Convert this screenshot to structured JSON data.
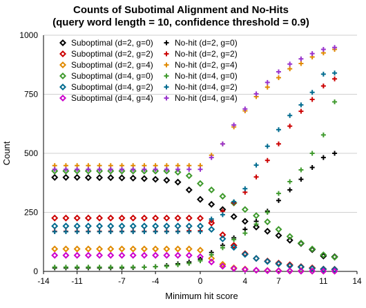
{
  "chart_data": {
    "type": "scatter",
    "title_line1": "Counts of Subotimal Alignment and No-Hits",
    "title_line2": "(query word length = 10, confidence threshold = 0.9)",
    "xlabel": "Minimum hit score",
    "ylabel": "Count",
    "xlim": [
      -14,
      14
    ],
    "ylim": [
      0,
      1000
    ],
    "xticks": [
      -14,
      -11,
      -7,
      -4,
      0,
      4,
      7,
      11,
      14
    ],
    "yticks": [
      0,
      250,
      500,
      750,
      1000
    ],
    "grid": "horizontal",
    "legend_position": "top-left",
    "x": [
      -13,
      -12,
      -11,
      -10,
      -9,
      -8,
      -7,
      -6,
      -5,
      -4,
      -3,
      -2,
      -1,
      0,
      1,
      2,
      3,
      4,
      5,
      6,
      7,
      8,
      9,
      10,
      11,
      12
    ],
    "series": [
      {
        "name": "Suboptimal (d=2, g=0)",
        "marker": "diamond",
        "color": "#000000",
        "values": [
          398,
          398,
          398,
          397,
          397,
          397,
          396,
          395,
          393,
          390,
          386,
          378,
          345,
          305,
          284,
          262,
          232,
          212,
          188,
          170,
          152,
          132,
          118,
          92,
          65,
          62
        ]
      },
      {
        "name": "Suboptimal (d=2, g=2)",
        "marker": "diamond",
        "color": "#cc0000",
        "values": [
          226,
          226,
          226,
          226,
          226,
          226,
          226,
          226,
          226,
          226,
          226,
          226,
          226,
          225,
          205,
          155,
          110,
          75,
          55,
          44,
          35,
          28,
          20,
          15,
          10,
          9
        ]
      },
      {
        "name": "Suboptimal (d=2, g=4)",
        "marker": "diamond",
        "color": "#e08a00",
        "values": [
          95,
          95,
          95,
          95,
          95,
          95,
          95,
          95,
          95,
          95,
          95,
          95,
          95,
          90,
          55,
          30,
          15,
          10,
          5,
          4,
          3,
          2,
          2,
          1,
          1,
          1
        ]
      },
      {
        "name": "Suboptimal (d=4, g=0)",
        "marker": "diamond",
        "color": "#3f9a2d",
        "values": [
          425,
          425,
          425,
          425,
          425,
          425,
          425,
          425,
          425,
          425,
          425,
          420,
          405,
          372,
          345,
          318,
          290,
          262,
          236,
          210,
          178,
          148,
          120,
          95,
          70,
          60
        ]
      },
      {
        "name": "Suboptimal (d=4, g=2)",
        "marker": "diamond",
        "color": "#006b8f",
        "values": [
          192,
          192,
          192,
          192,
          192,
          192,
          192,
          192,
          192,
          192,
          192,
          192,
          192,
          192,
          178,
          138,
          102,
          72,
          55,
          42,
          32,
          24,
          18,
          12,
          9,
          8
        ]
      },
      {
        "name": "Suboptimal (d=4, g=4)",
        "marker": "diamond",
        "color": "#cc00cc",
        "values": [
          68,
          68,
          68,
          68,
          68,
          68,
          68,
          68,
          68,
          68,
          68,
          68,
          68,
          62,
          40,
          22,
          12,
          8,
          5,
          3,
          2,
          2,
          1,
          1,
          1,
          1
        ]
      },
      {
        "name": "No-hit (d=2, g=0)",
        "marker": "plus",
        "color": "#000000",
        "values": [
          15,
          15,
          15,
          15,
          15,
          15,
          15,
          16,
          18,
          20,
          25,
          32,
          40,
          52,
          80,
          110,
          142,
          178,
          212,
          255,
          300,
          345,
          390,
          440,
          482,
          500
        ]
      },
      {
        "name": "No-hit (d=2, g=2)",
        "marker": "plus",
        "color": "#cc0000",
        "values": [
          170,
          170,
          170,
          170,
          170,
          170,
          170,
          170,
          170,
          170,
          170,
          170,
          172,
          172,
          215,
          255,
          290,
          335,
          400,
          470,
          540,
          615,
          678,
          728,
          785,
          815
        ]
      },
      {
        "name": "No-hit (d=2, g=4)",
        "marker": "plus",
        "color": "#e08a00",
        "values": [
          448,
          448,
          448,
          448,
          448,
          448,
          448,
          448,
          448,
          448,
          448,
          448,
          448,
          448,
          492,
          540,
          612,
          680,
          740,
          780,
          820,
          858,
          880,
          908,
          925,
          940
        ]
      },
      {
        "name": "No-hit (d=4, g=0)",
        "marker": "plus",
        "color": "#3f9a2d",
        "values": [
          18,
          18,
          18,
          18,
          18,
          18,
          18,
          18,
          18,
          20,
          22,
          28,
          34,
          45,
          70,
          100,
          135,
          162,
          200,
          250,
          330,
          380,
          430,
          500,
          578,
          718
        ]
      },
      {
        "name": "No-hit (d=4, g=2)",
        "marker": "plus",
        "color": "#006b8f",
        "values": [
          168,
          168,
          168,
          168,
          168,
          168,
          168,
          168,
          168,
          168,
          168,
          168,
          168,
          168,
          222,
          240,
          295,
          350,
          450,
          530,
          600,
          660,
          705,
          758,
          835,
          840
        ]
      },
      {
        "name": "No-hit (d=4, g=4)",
        "marker": "plus",
        "color": "#9933cc",
        "values": [
          432,
          432,
          432,
          432,
          432,
          432,
          432,
          432,
          432,
          432,
          432,
          432,
          432,
          432,
          482,
          540,
          620,
          688,
          752,
          800,
          845,
          878,
          900,
          922,
          940,
          948
        ]
      }
    ]
  }
}
